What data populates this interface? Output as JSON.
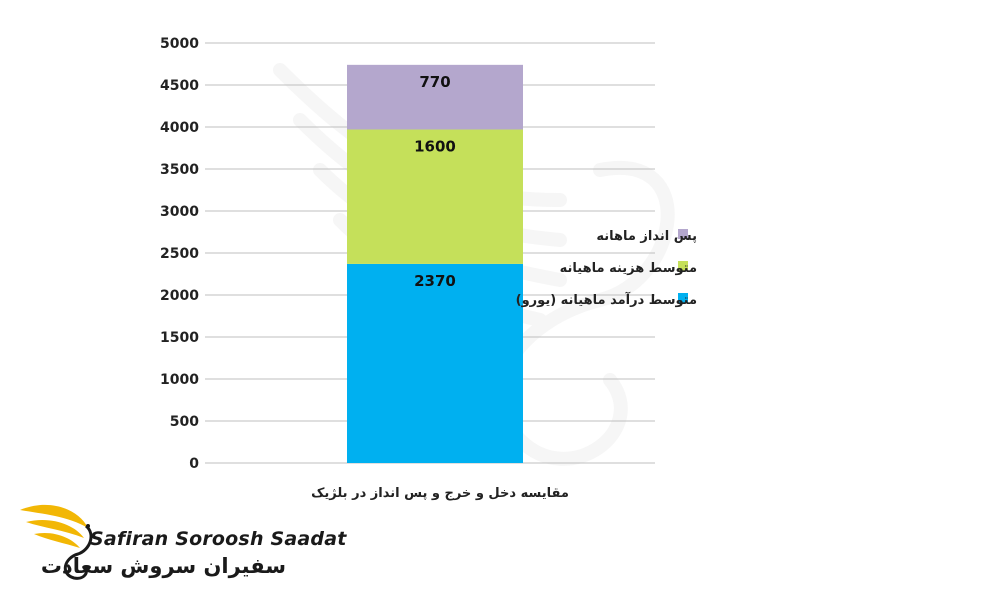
{
  "chart_data": {
    "type": "bar",
    "stacked": true,
    "title": "مقایسه دخل و خرج و پس انداز در بلژیک",
    "categories": [
      ""
    ],
    "ylim": [
      0,
      5000
    ],
    "yticks": [
      0,
      500,
      1000,
      1500,
      2000,
      2500,
      3000,
      3500,
      4000,
      4500,
      5000
    ],
    "grid": true,
    "legend_position": "right",
    "series": [
      {
        "name": "متوسط درآمد ماهیانه (یورو)",
        "values": [
          2370
        ],
        "label": "2370",
        "color": "#00b0f0"
      },
      {
        "name": "متوسط هزینه ماهیانه",
        "values": [
          1600
        ],
        "label": "1600",
        "color": "#c5e05a"
      },
      {
        "name": "پس انداز ماهانه",
        "values": [
          770
        ],
        "label": "770",
        "color": "#b4a7cd"
      }
    ]
  },
  "logo": {
    "name_en": "Safiran Soroosh Saadat",
    "name_fa": "سفیران سروش سعادت",
    "accent_color": "#f2b705"
  }
}
